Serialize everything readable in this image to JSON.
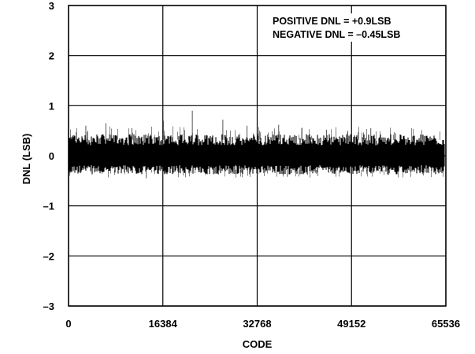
{
  "chart_data": {
    "type": "line",
    "title": "",
    "xlabel": "CODE",
    "ylabel": "DNL (LSB)",
    "xlim": [
      0,
      65536
    ],
    "ylim": [
      -3,
      3
    ],
    "x_ticks": [
      0,
      16384,
      32768,
      49152,
      65536
    ],
    "x_tick_labels": [
      "0",
      "16384",
      "32768",
      "49152",
      "65536"
    ],
    "y_ticks": [
      3,
      2,
      1,
      0,
      -1,
      -2,
      -3
    ],
    "y_tick_labels": [
      "3",
      "2",
      "1",
      "0",
      "–1",
      "–2",
      "–3"
    ],
    "grid": true,
    "annotations": [
      "POSITIVE DNL = +0.9LSB",
      "NEGATIVE DNL = –0.45LSB"
    ],
    "annotation_position": "top-right",
    "series": [
      {
        "color": "#000000",
        "description_values": {
          "band_low": -0.28,
          "band_high": 0.32,
          "spikes": [
            {
              "x": 3000,
              "y": 0.6
            },
            {
              "x": 6500,
              "y": 0.65
            },
            {
              "x": 11000,
              "y": 0.55
            },
            {
              "x": 16500,
              "y": 0.7
            },
            {
              "x": 21500,
              "y": 0.9
            },
            {
              "x": 26800,
              "y": 0.72
            },
            {
              "x": 31000,
              "y": 0.6
            },
            {
              "x": 36500,
              "y": 0.62
            },
            {
              "x": 40500,
              "y": 0.55
            },
            {
              "x": 44800,
              "y": 0.52
            },
            {
              "x": 48500,
              "y": 0.5
            },
            {
              "x": 52500,
              "y": 0.55
            },
            {
              "x": 56800,
              "y": 0.45
            },
            {
              "x": 61500,
              "y": 0.42
            },
            {
              "x": 13500,
              "y": -0.45
            },
            {
              "x": 38000,
              "y": -0.42
            }
          ]
        }
      }
    ]
  }
}
